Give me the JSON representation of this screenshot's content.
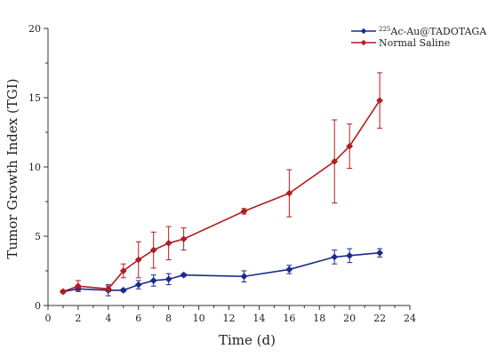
{
  "chart_data": {
    "type": "line",
    "title": "",
    "xlabel": "Time (d)",
    "ylabel": "Tumor Growth Index (TGI)",
    "xlim": [
      0,
      24
    ],
    "ylim": [
      0,
      20
    ],
    "xticks": [
      0,
      2,
      4,
      6,
      8,
      10,
      12,
      14,
      16,
      18,
      20,
      22,
      24
    ],
    "yticks": [
      0,
      5,
      10,
      15,
      20
    ],
    "xtick_labels": [
      "0",
      "2",
      "4",
      "6",
      "8",
      "10",
      "12",
      "14",
      "16",
      "18",
      "20",
      "22",
      "24"
    ],
    "ytick_labels": [
      "0",
      "5",
      "10",
      "15",
      "20"
    ],
    "grid": false,
    "legend_position": "top-right",
    "series": [
      {
        "name_sup": "225",
        "name_main": "Ac-Au@TADOTAGA",
        "color": "#1c2a8c",
        "marker": "diamond",
        "x": [
          1,
          2,
          4,
          5,
          6,
          7,
          8,
          9,
          13,
          16,
          19,
          20,
          22
        ],
        "y": [
          1.0,
          1.2,
          1.1,
          1.1,
          1.5,
          1.8,
          1.9,
          2.2,
          2.1,
          2.6,
          3.5,
          3.6,
          3.8
        ],
        "error": [
          0.1,
          0.1,
          0.4,
          0.1,
          0.3,
          0.4,
          0.4,
          0.1,
          0.4,
          0.3,
          0.5,
          0.5,
          0.3
        ]
      },
      {
        "name": "Normal Saline",
        "color": "#b01e1e",
        "marker": "diamond",
        "x": [
          1,
          2,
          4,
          5,
          6,
          7,
          8,
          9,
          13,
          16,
          19,
          20,
          22
        ],
        "y": [
          1.0,
          1.4,
          1.2,
          2.5,
          3.3,
          4.0,
          4.5,
          4.8,
          6.8,
          8.1,
          10.4,
          11.5,
          14.8
        ],
        "error": [
          0.1,
          0.4,
          0.2,
          0.5,
          1.3,
          1.3,
          1.2,
          0.8,
          0.2,
          1.7,
          3.0,
          1.6,
          2.0
        ]
      }
    ]
  }
}
